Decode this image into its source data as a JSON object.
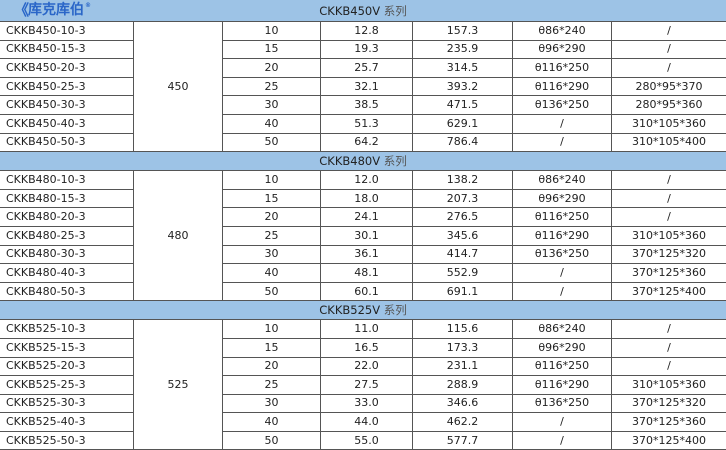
{
  "logo": {
    "text": "库克库伯",
    "mark": "K"
  },
  "sections": [
    {
      "title": "CKKB450V",
      "suffix": "系列",
      "voltage": "450",
      "rows": [
        [
          "CKKB450-10-3",
          "10",
          "12.8",
          "157.3",
          "θ86*240",
          "/"
        ],
        [
          "CKKB450-15-3",
          "15",
          "19.3",
          "235.9",
          "θ96*290",
          "/"
        ],
        [
          "CKKB450-20-3",
          "20",
          "25.7",
          "314.5",
          "θ116*250",
          "/"
        ],
        [
          "CKKB450-25-3",
          "25",
          "32.1",
          "393.2",
          "θ116*290",
          "280*95*370"
        ],
        [
          "CKKB450-30-3",
          "30",
          "38.5",
          "471.5",
          "θ136*250",
          "280*95*360"
        ],
        [
          "CKKB450-40-3",
          "40",
          "51.3",
          "629.1",
          "/",
          "310*105*360"
        ],
        [
          "CKKB450-50-3",
          "50",
          "64.2",
          "786.4",
          "/",
          "310*105*400"
        ]
      ]
    },
    {
      "title": "CKKB480V",
      "suffix": "系列",
      "voltage": "480",
      "rows": [
        [
          "CKKB480-10-3",
          "10",
          "12.0",
          "138.2",
          "θ86*240",
          "/"
        ],
        [
          "CKKB480-15-3",
          "15",
          "18.0",
          "207.3",
          "θ96*290",
          "/"
        ],
        [
          "CKKB480-20-3",
          "20",
          "24.1",
          "276.5",
          "θ116*250",
          "/"
        ],
        [
          "CKKB480-25-3",
          "25",
          "30.1",
          "345.6",
          "θ116*290",
          "310*105*360"
        ],
        [
          "CKKB480-30-3",
          "30",
          "36.1",
          "414.7",
          "θ136*250",
          "370*125*320"
        ],
        [
          "CKKB480-40-3",
          "40",
          "48.1",
          "552.9",
          "/",
          "370*125*360"
        ],
        [
          "CKKB480-50-3",
          "50",
          "60.1",
          "691.1",
          "/",
          "370*125*400"
        ]
      ]
    },
    {
      "title": "CKKB525V",
      "suffix": "系列",
      "voltage": "525",
      "rows": [
        [
          "CKKB525-10-3",
          "10",
          "11.0",
          "115.6",
          "θ86*240",
          "/"
        ],
        [
          "CKKB525-15-3",
          "15",
          "16.5",
          "173.3",
          "θ96*290",
          "/"
        ],
        [
          "CKKB525-20-3",
          "20",
          "22.0",
          "231.1",
          "θ116*250",
          "/"
        ],
        [
          "CKKB525-25-3",
          "25",
          "27.5",
          "288.9",
          "θ116*290",
          "310*105*360"
        ],
        [
          "CKKB525-30-3",
          "30",
          "33.0",
          "346.6",
          "θ136*250",
          "370*125*320"
        ],
        [
          "CKKB525-40-3",
          "40",
          "44.0",
          "462.2",
          "/",
          "370*125*360"
        ],
        [
          "CKKB525-50-3",
          "50",
          "55.0",
          "577.7",
          "/",
          "370*125*400"
        ]
      ]
    }
  ]
}
